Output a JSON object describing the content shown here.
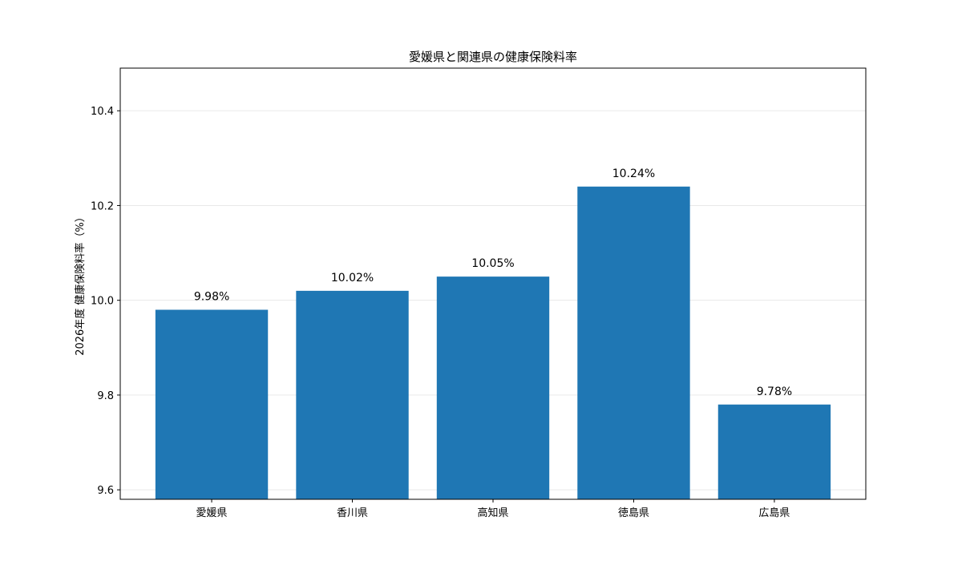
{
  "chart_data": {
    "type": "bar",
    "title": "愛媛県と関連県の健康保険料率",
    "xlabel": "",
    "ylabel": "2026年度 健康保険料率（%）",
    "categories": [
      "愛媛県",
      "香川県",
      "高知県",
      "徳島県",
      "広島県"
    ],
    "values": [
      9.98,
      10.02,
      10.05,
      10.24,
      9.78
    ],
    "data_labels": [
      "9.98%",
      "10.02%",
      "10.05%",
      "10.24%",
      "9.78%"
    ],
    "ylim": [
      9.58,
      10.49
    ],
    "yticks": [
      9.6,
      9.8,
      10.0,
      10.2,
      10.4
    ],
    "ytick_labels": [
      "9.6",
      "9.8",
      "10.0",
      "10.2",
      "10.4"
    ],
    "grid": true,
    "bar_color": "#1f77b4"
  }
}
